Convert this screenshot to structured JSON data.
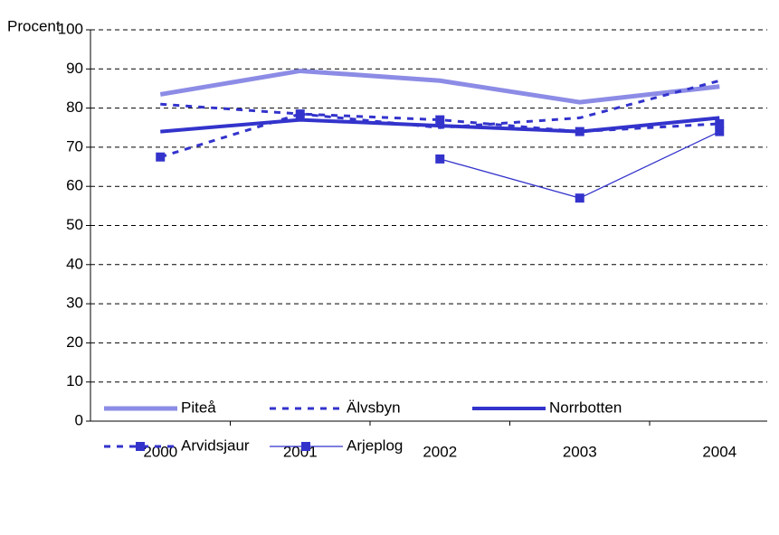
{
  "chart_data": {
    "type": "line",
    "y_label": "Procent",
    "categories": [
      "2000",
      "2001",
      "2002",
      "2003",
      "2004"
    ],
    "series": [
      {
        "name": "Piteå",
        "color": "#8c8ce6",
        "values": [
          83.5,
          89.5,
          87,
          81.5,
          85.5
        ]
      },
      {
        "name": "Älvsbyn",
        "color": "#3333cc",
        "values": [
          81,
          78.5,
          75,
          77.5,
          87
        ]
      },
      {
        "name": "Norrbotten",
        "color": "#3333cc",
        "values": [
          74,
          77,
          75.5,
          74,
          77.5
        ]
      },
      {
        "name": "Arvidsjaur",
        "color": "#3333cc",
        "values": [
          67.5,
          78.5,
          77,
          74,
          76
        ]
      },
      {
        "name": "Arjeplog",
        "color": "#3333cc",
        "values": [
          null,
          null,
          67,
          57,
          74
        ]
      }
    ],
    "ylim": [
      0,
      100
    ],
    "yticks": [
      0,
      10,
      20,
      30,
      40,
      50,
      60,
      70,
      80,
      90,
      100
    ],
    "grid": true
  }
}
